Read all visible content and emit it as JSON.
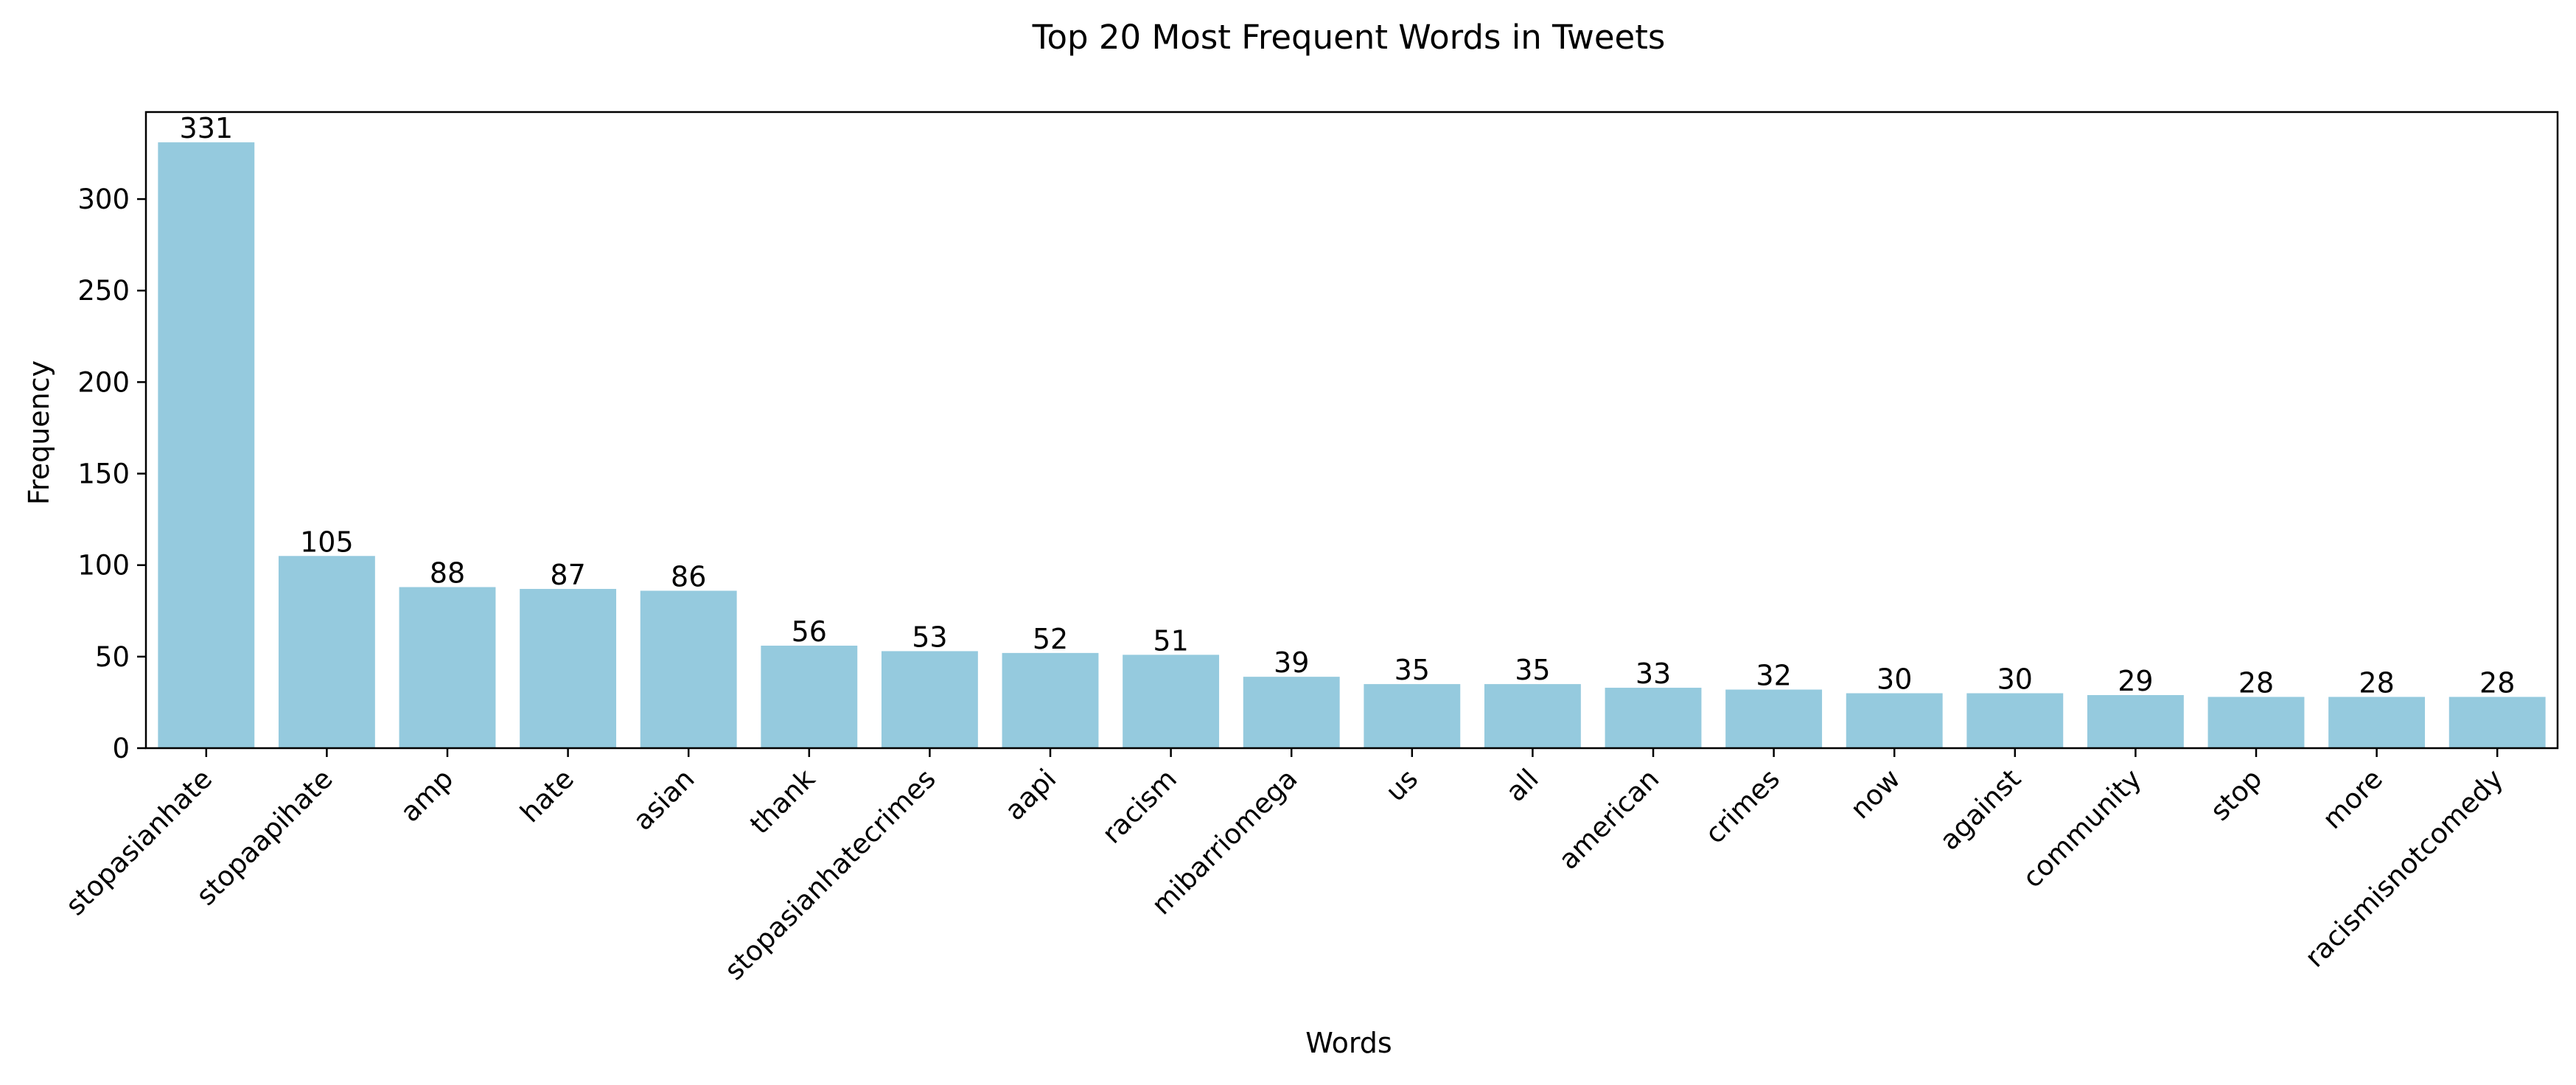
{
  "chart_data": {
    "type": "bar",
    "title": "Top 20 Most Frequent Words in Tweets",
    "xlabel": "Words",
    "ylabel": "Frequency",
    "categories": [
      "stopasianhate",
      "stopaapihate",
      "amp",
      "hate",
      "asian",
      "thank",
      "stopasianhatecrimes",
      "aapi",
      "racism",
      "mibarriomega",
      "us",
      "all",
      "american",
      "crimes",
      "now",
      "against",
      "community",
      "stop",
      "more",
      "racismisnotcomedy"
    ],
    "values": [
      331,
      105,
      88,
      87,
      86,
      56,
      53,
      52,
      51,
      39,
      35,
      35,
      33,
      32,
      30,
      30,
      29,
      28,
      28,
      28
    ],
    "ylim": [
      0,
      347.55
    ],
    "yticks": [
      0,
      50,
      100,
      150,
      200,
      250,
      300
    ],
    "grid": false,
    "data_labels": true,
    "bar_color": "#95cade",
    "x_tick_rotation": 45
  }
}
